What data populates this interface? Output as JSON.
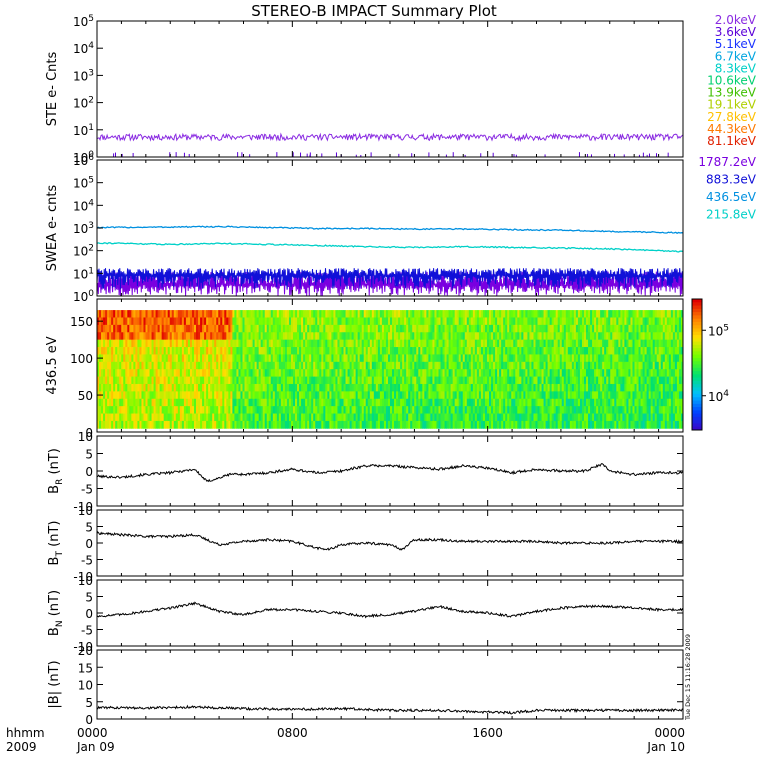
{
  "title": "STEREO-B IMPACT Summary Plot",
  "side_stamp": "Tue Dec 15 11:16:28 2009",
  "time_axis": {
    "corner_top": "hhmm",
    "corner_bottom": "2009",
    "ticks": [
      {
        "hour": 0,
        "label": "0000",
        "date": "Jan 09"
      },
      {
        "hour": 8,
        "label": "0800",
        "date": ""
      },
      {
        "hour": 16,
        "label": "1600",
        "date": ""
      },
      {
        "hour": 24,
        "label": "0000",
        "date": "Jan 10"
      }
    ],
    "range_hours": [
      0,
      24
    ]
  },
  "colors": {
    "ste_energies": [
      "#8a2be2",
      "#5a00d8",
      "#1a33ff",
      "#00a5e0",
      "#00d0c8",
      "#00d070",
      "#40c000",
      "#b0d000",
      "#ffc000",
      "#ff7a00",
      "#e02000"
    ],
    "swea_energies": [
      "#7a00e0",
      "#1010d8",
      "#0090e0",
      "#00d0c8"
    ],
    "spectrogram_scale": [
      "#4000c0",
      "#0040ff",
      "#00c0ff",
      "#00e070",
      "#70ff00",
      "#ffe000",
      "#ff8000",
      "#e00000"
    ]
  },
  "chart_data": [
    {
      "type": "line",
      "panel": "ste",
      "ylabel": "STE e- Cnts",
      "log_scale": true,
      "ylim": [
        1,
        100000
      ],
      "tick_labels": [
        {
          "base": "10",
          "exp": "0",
          "value": 1
        },
        {
          "base": "10",
          "exp": "1",
          "value": 10
        },
        {
          "base": "10",
          "exp": "2",
          "value": 100
        },
        {
          "base": "10",
          "exp": "3",
          "value": 1000
        },
        {
          "base": "10",
          "exp": "4",
          "value": 10000
        },
        {
          "base": "10",
          "exp": "5",
          "value": 100000
        }
      ],
      "legend": [
        "2.0keV",
        "3.6keV",
        "5.1keV",
        "6.7keV",
        "8.3keV",
        "10.6keV",
        "13.9keV",
        "19.1keV",
        "27.8keV",
        "44.3keV",
        "81.1keV"
      ],
      "series": [
        {
          "name": "2.0keV",
          "level": 5.5,
          "noise": 1.4
        },
        {
          "name": "3.6keV",
          "level": 1.0,
          "noise": 0.2
        }
      ]
    },
    {
      "type": "line",
      "panel": "swea",
      "ylabel": "SWEA e- cnts",
      "log_scale": true,
      "ylim": [
        1,
        1000000
      ],
      "tick_labels": [
        {
          "base": "10",
          "exp": "0",
          "value": 1
        },
        {
          "base": "10",
          "exp": "1",
          "value": 10
        },
        {
          "base": "10",
          "exp": "2",
          "value": 100
        },
        {
          "base": "10",
          "exp": "3",
          "value": 1000
        },
        {
          "base": "10",
          "exp": "4",
          "value": 10000
        },
        {
          "base": "10",
          "exp": "5",
          "value": 100000
        },
        {
          "base": "10",
          "exp": "6",
          "value": 1000000
        }
      ],
      "legend": [
        "1787.2eV",
        "883.3eV",
        "436.5eV",
        "215.8eV"
      ],
      "series": [
        {
          "name": "215.8eV",
          "x": [
            0,
            3,
            5,
            7,
            9,
            11,
            13,
            15,
            17,
            19,
            21,
            23,
            24
          ],
          "y": [
            1050,
            1100,
            1150,
            1050,
            950,
            950,
            900,
            900,
            850,
            800,
            700,
            650,
            600
          ]
        },
        {
          "name": "436.5eV",
          "x": [
            0,
            3,
            5,
            7,
            9,
            11,
            13,
            15,
            17,
            19,
            21,
            23,
            24
          ],
          "y": [
            220,
            190,
            210,
            190,
            170,
            150,
            140,
            150,
            140,
            130,
            120,
            100,
            90
          ]
        },
        {
          "name": "883.3eV",
          "level": 8,
          "noise_low": 2,
          "noise_high": 17
        },
        {
          "name": "1787.2eV",
          "level": 3,
          "noise_low": 1,
          "noise_high": 12
        }
      ]
    },
    {
      "type": "heatmap",
      "panel": "pitch-angle",
      "ylabel": "436.5 eV",
      "ylim": [
        0,
        180
      ],
      "y_ticks": [
        0,
        50,
        100,
        150
      ],
      "colorbar": {
        "ticks": [
          {
            "base": "10",
            "exp": "5",
            "value": 100000
          },
          {
            "base": "10",
            "exp": "4",
            "value": 10000
          }
        ],
        "range": [
          3000,
          300000
        ]
      }
    },
    {
      "type": "line",
      "panel": "br",
      "ylabel_main": "B",
      "ylabel_sub": "R",
      "ylabel_unit": "(nT)",
      "ylim": [
        -10,
        10
      ],
      "y_ticks": [
        -10,
        -5,
        0,
        5,
        10
      ],
      "x": [
        0,
        1,
        2,
        3,
        4,
        4.5,
        5,
        5.5,
        6,
        7,
        8,
        9,
        10,
        11,
        12,
        13,
        14,
        15,
        16,
        17,
        18,
        19,
        20,
        20.7,
        21,
        22,
        23,
        24
      ],
      "y": [
        -1.5,
        -1.8,
        -1.0,
        -0.5,
        0.5,
        -3.0,
        -2.0,
        -0.8,
        -1.0,
        -0.5,
        0.5,
        -0.5,
        0.0,
        1.5,
        1.5,
        1.0,
        0.5,
        1.5,
        0.8,
        -0.5,
        0.5,
        0.0,
        0.0,
        2.0,
        0.0,
        -1.0,
        -0.5,
        -0.5
      ]
    },
    {
      "type": "line",
      "panel": "bt",
      "ylabel_main": "B",
      "ylabel_sub": "T",
      "ylabel_unit": "(nT)",
      "ylim": [
        -10,
        10
      ],
      "y_ticks": [
        -10,
        -5,
        0,
        5,
        10
      ],
      "x": [
        0,
        1,
        2,
        3,
        4,
        5,
        6,
        7,
        8,
        9,
        9.5,
        10,
        11,
        12,
        12.5,
        13,
        14,
        15,
        16,
        17,
        18,
        19,
        20,
        21,
        22,
        23,
        24
      ],
      "y": [
        3.0,
        2.5,
        2.0,
        2.0,
        2.5,
        -0.5,
        0.5,
        1.0,
        0.5,
        -1.5,
        -2.0,
        -0.5,
        0.0,
        -0.5,
        -2.0,
        1.0,
        1.0,
        0.5,
        0.5,
        0.5,
        0.5,
        0.0,
        0.0,
        0.0,
        0.5,
        0.5,
        0.5
      ]
    },
    {
      "type": "line",
      "panel": "bn",
      "ylabel_main": "B",
      "ylabel_sub": "N",
      "ylabel_unit": "(nT)",
      "ylim": [
        -10,
        10
      ],
      "y_ticks": [
        -10,
        -5,
        0,
        5,
        10
      ],
      "x": [
        0,
        1,
        2,
        3,
        4,
        5,
        6,
        7,
        8,
        9,
        10,
        11,
        12,
        13,
        14,
        15,
        16,
        17,
        18,
        19,
        20,
        21,
        22,
        23,
        24
      ],
      "y": [
        -1.0,
        -0.5,
        0.5,
        1.5,
        3.0,
        0.5,
        -0.5,
        1.0,
        1.0,
        0.5,
        0.0,
        -1.0,
        -0.5,
        0.5,
        2.0,
        0.5,
        0.0,
        -1.0,
        0.5,
        1.5,
        2.0,
        2.0,
        1.5,
        1.0,
        1.0
      ]
    },
    {
      "type": "line",
      "panel": "bmag",
      "ylabel_main": "|B|",
      "ylabel_sub": "",
      "ylabel_unit": "(nT)",
      "ylim": [
        0,
        20
      ],
      "y_ticks": [
        0,
        5,
        10,
        15,
        20
      ],
      "x": [
        0,
        2,
        4,
        6,
        8,
        10,
        12,
        14,
        16,
        17,
        18,
        20,
        22,
        24
      ],
      "y": [
        3.3,
        3.2,
        3.5,
        3.0,
        2.8,
        3.0,
        2.5,
        2.5,
        2.0,
        1.8,
        2.5,
        2.5,
        2.5,
        2.6
      ]
    }
  ]
}
